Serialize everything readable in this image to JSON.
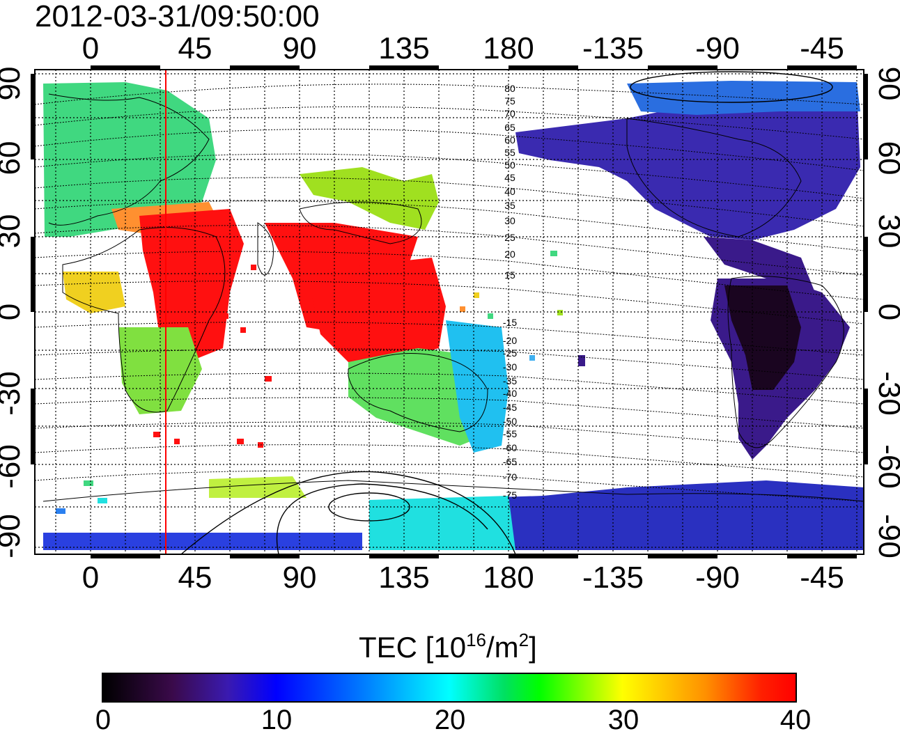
{
  "title": "2012-03-31/09:50:00",
  "map": {
    "x_ticks": [
      "0",
      "45",
      "90",
      "135",
      "180",
      "-135",
      "-90",
      "-45"
    ],
    "y_ticks": [
      "90",
      "60",
      "30",
      "0",
      "-30",
      "-60",
      "-90"
    ],
    "contour_labels_north": [
      "80",
      "75",
      "70",
      "65",
      "60",
      "55",
      "50",
      "45",
      "40",
      "35",
      "30",
      "25",
      "20",
      "15"
    ],
    "contour_labels_south": [
      "-15",
      "-20",
      "-25",
      "-30",
      "-35",
      "-40",
      "-45",
      "-50",
      "-55",
      "-60",
      "-65",
      "-70",
      "-75"
    ],
    "terminator_color": "#ff0000",
    "region_colors": {
      "americas": "#3a1a8a",
      "north_america": "#3a2ab0",
      "south_america_core": "#1a0520",
      "africa_south": "#80e040",
      "europe": "#40d880",
      "equatorial": "#ff1010",
      "australia": "#60e060",
      "antarctic_east": "#2a30c0",
      "antarctic_west": "#20e0e0"
    }
  },
  "colorbar": {
    "title_prefix": "TEC  [10",
    "title_exp1": "16",
    "title_mid": "/m",
    "title_exp2": "2",
    "title_suffix": "]",
    "labels": [
      "0",
      "10",
      "20",
      "30",
      "40"
    ]
  }
}
